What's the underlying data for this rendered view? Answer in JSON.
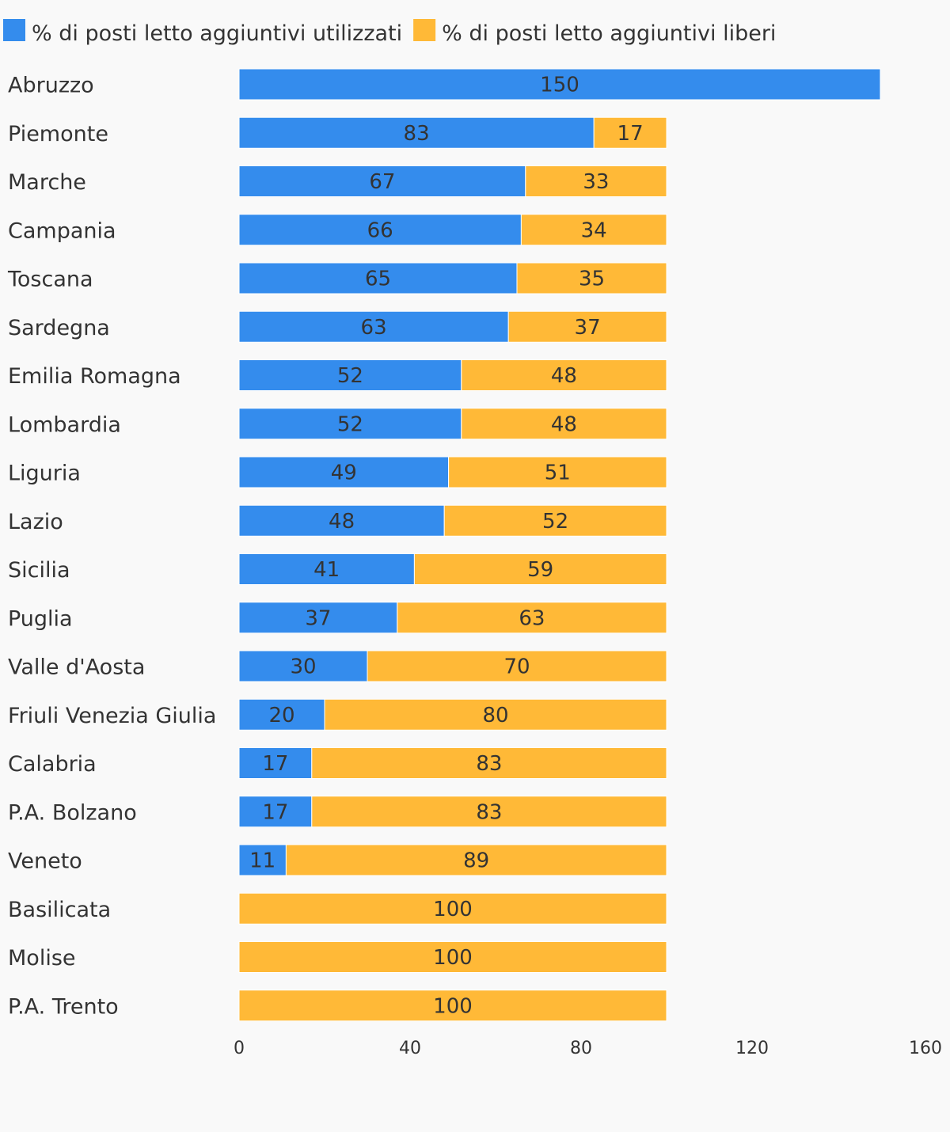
{
  "chart_data": {
    "type": "bar",
    "orientation": "horizontal",
    "stacked": true,
    "title": "",
    "xlabel": "",
    "ylabel": "",
    "xlim": [
      0,
      160
    ],
    "xticks": [
      0,
      40,
      80,
      120,
      160
    ],
    "grid": false,
    "legend_position": "top-left",
    "categories": [
      "Abruzzo",
      "Piemonte",
      "Marche",
      "Campania",
      "Toscana",
      "Sardegna",
      "Emilia Romagna",
      "Lombardia",
      "Liguria",
      "Lazio",
      "Sicilia",
      "Puglia",
      "Valle d'Aosta",
      "Friuli Venezia Giulia",
      "Calabria",
      "P.A. Bolzano",
      "Veneto",
      "Basilicata",
      "Molise",
      "P.A. Trento"
    ],
    "series": [
      {
        "name": "% di posti letto aggiuntivi utilizzati",
        "color": "#348ced",
        "values": [
          150,
          83,
          67,
          66,
          65,
          63,
          52,
          52,
          49,
          48,
          41,
          37,
          30,
          20,
          17,
          17,
          11,
          0,
          0,
          0
        ]
      },
      {
        "name": "% di posti letto aggiuntivi liberi",
        "color": "#ffb937",
        "values": [
          null,
          17,
          33,
          34,
          35,
          37,
          48,
          48,
          51,
          52,
          59,
          63,
          70,
          80,
          83,
          83,
          89,
          100,
          100,
          100
        ]
      }
    ]
  }
}
